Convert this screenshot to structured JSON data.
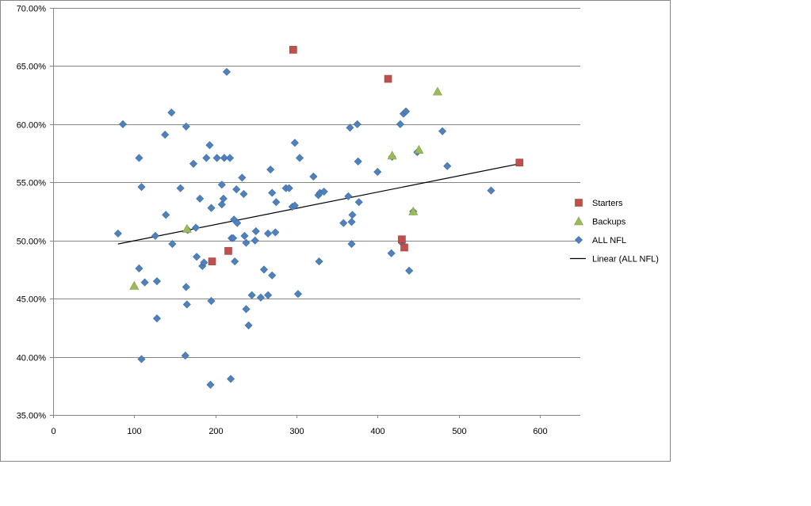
{
  "chart_data": {
    "type": "scatter",
    "title": "",
    "xlabel": "",
    "ylabel": "",
    "xlim": [
      0,
      650
    ],
    "ylim": [
      0.35,
      0.7
    ],
    "x_ticks": [
      "0",
      "100",
      "200",
      "300",
      "400",
      "500",
      "600"
    ],
    "y_ticks": [
      "35.00%",
      "40.00%",
      "45.00%",
      "50.00%",
      "55.00%",
      "60.00%",
      "65.00%",
      "70.00%"
    ],
    "grid": "horizontal",
    "legend_position": "right",
    "legend": [
      {
        "label": "Starters",
        "marker": "square",
        "color": "#C0504D"
      },
      {
        "label": "Backups",
        "marker": "triangle",
        "color": "#9BBB59"
      },
      {
        "label": "ALL NFL",
        "marker": "diamond",
        "color": "#4F81BD"
      },
      {
        "label": "Linear (ALL NFL)",
        "marker": "line",
        "color": "#000000"
      }
    ],
    "series": [
      {
        "name": "Starters",
        "color": "#C0504D",
        "marker": "square",
        "points": [
          [
            296,
            0.664
          ],
          [
            413,
            0.639
          ],
          [
            196,
            0.482
          ],
          [
            216,
            0.491
          ],
          [
            430,
            0.501
          ],
          [
            433,
            0.494
          ],
          [
            575,
            0.567
          ]
        ]
      },
      {
        "name": "Backups",
        "color": "#9BBB59",
        "marker": "triangle",
        "points": [
          [
            100,
            0.461
          ],
          [
            165,
            0.51
          ],
          [
            418,
            0.573
          ],
          [
            444,
            0.525
          ],
          [
            451,
            0.578
          ],
          [
            474,
            0.628
          ]
        ]
      },
      {
        "name": "ALL NFL",
        "color": "#4F81BD",
        "marker": "diamond",
        "points": [
          [
            80,
            0.506
          ],
          [
            86,
            0.6
          ],
          [
            106,
            0.571
          ],
          [
            106,
            0.476
          ],
          [
            109,
            0.546
          ],
          [
            109,
            0.398
          ],
          [
            113,
            0.464
          ],
          [
            126,
            0.504
          ],
          [
            128,
            0.465
          ],
          [
            128,
            0.433
          ],
          [
            138,
            0.591
          ],
          [
            139,
            0.522
          ],
          [
            146,
            0.61
          ],
          [
            147,
            0.497
          ],
          [
            157,
            0.545
          ],
          [
            163,
            0.401
          ],
          [
            164,
            0.598
          ],
          [
            164,
            0.46
          ],
          [
            165,
            0.445
          ],
          [
            166,
            0.509
          ],
          [
            173,
            0.566
          ],
          [
            176,
            0.511
          ],
          [
            177,
            0.486
          ],
          [
            181,
            0.536
          ],
          [
            184,
            0.478
          ],
          [
            186,
            0.481
          ],
          [
            189,
            0.571
          ],
          [
            193,
            0.582
          ],
          [
            194,
            0.376
          ],
          [
            195,
            0.448
          ],
          [
            195,
            0.528
          ],
          [
            202,
            0.571
          ],
          [
            208,
            0.548
          ],
          [
            208,
            0.531
          ],
          [
            210,
            0.536
          ],
          [
            211,
            0.571
          ],
          [
            214,
            0.645
          ],
          [
            218,
            0.571
          ],
          [
            219,
            0.381
          ],
          [
            220,
            0.502
          ],
          [
            222,
            0.502
          ],
          [
            223,
            0.518
          ],
          [
            224,
            0.482
          ],
          [
            226,
            0.544
          ],
          [
            227,
            0.515
          ],
          [
            233,
            0.554
          ],
          [
            235,
            0.54
          ],
          [
            236,
            0.504
          ],
          [
            238,
            0.498
          ],
          [
            238,
            0.441
          ],
          [
            241,
            0.427
          ],
          [
            245,
            0.453
          ],
          [
            249,
            0.5
          ],
          [
            250,
            0.508
          ],
          [
            256,
            0.451
          ],
          [
            260,
            0.475
          ],
          [
            265,
            0.506
          ],
          [
            265,
            0.453
          ],
          [
            268,
            0.561
          ],
          [
            270,
            0.47
          ],
          [
            270,
            0.541
          ],
          [
            274,
            0.507
          ],
          [
            275,
            0.533
          ],
          [
            287,
            0.545
          ],
          [
            291,
            0.545
          ],
          [
            295,
            0.529
          ],
          [
            298,
            0.584
          ],
          [
            298,
            0.53
          ],
          [
            302,
            0.454
          ],
          [
            304,
            0.571
          ],
          [
            321,
            0.555
          ],
          [
            327,
            0.539
          ],
          [
            328,
            0.482
          ],
          [
            329,
            0.541
          ],
          [
            334,
            0.542
          ],
          [
            358,
            0.515
          ],
          [
            364,
            0.538
          ],
          [
            366,
            0.597
          ],
          [
            368,
            0.516
          ],
          [
            368,
            0.497
          ],
          [
            369,
            0.522
          ],
          [
            375,
            0.6
          ],
          [
            376,
            0.568
          ],
          [
            377,
            0.533
          ],
          [
            400,
            0.559
          ],
          [
            417,
            0.489
          ],
          [
            428,
            0.6
          ],
          [
            432,
            0.609
          ],
          [
            435,
            0.611
          ],
          [
            439,
            0.474
          ],
          [
            444,
            0.525
          ],
          [
            449,
            0.576
          ],
          [
            480,
            0.594
          ],
          [
            486,
            0.564
          ],
          [
            540,
            0.543
          ],
          [
            418,
            0.572
          ],
          [
            575,
            0.567
          ],
          [
            430,
            0.498
          ]
        ]
      }
    ],
    "trendline": {
      "name": "Linear (ALL NFL)",
      "color": "#000000",
      "from": [
        80,
        0.497
      ],
      "to": [
        575,
        0.566
      ]
    }
  }
}
